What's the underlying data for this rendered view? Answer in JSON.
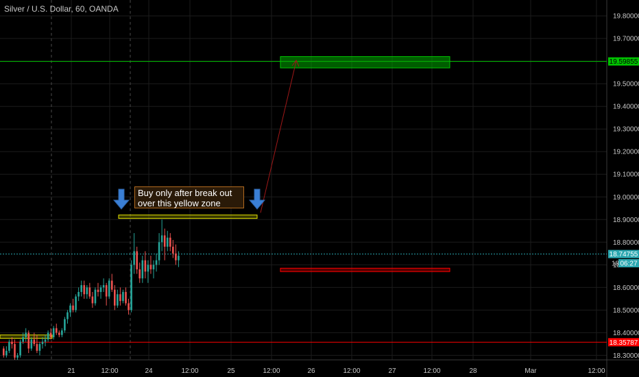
{
  "title": "Silver / U.S. Dollar, 60, OANDA",
  "note": {
    "line1": "Buy only after  break out",
    "line2": "over this yellow zone"
  },
  "colors": {
    "background": "#000000",
    "grid": "#1c1c1c",
    "axis_text": "#c8c8c8",
    "up": "#26a69a",
    "down": "#ef5350",
    "target": "#00c400",
    "stop": "#ff0000",
    "zone": "#e6e600",
    "arrow": "#3a7fd5",
    "price_line": "#2aa7b0"
  },
  "chart_data": {
    "type": "candlestick",
    "title": "Silver / U.S. Dollar, 60, OANDA",
    "ylim": [
      18.28,
      19.87
    ],
    "y_ticks": [
      "19.80000",
      "19.70000",
      "19.60000",
      "19.50000",
      "19.40000",
      "19.30000",
      "19.20000",
      "19.10000",
      "19.00000",
      "18.90000",
      "18.80000",
      "18.70000",
      "18.60000",
      "18.50000",
      "18.40000",
      "18.30000"
    ],
    "x_ticks": [
      "21",
      "12:00",
      "24",
      "12:00",
      "25",
      "12:00",
      "26",
      "12:00",
      "27",
      "12:00",
      "28",
      "Mar",
      "12:00"
    ],
    "price_labels": [
      {
        "text": "19.59855",
        "value": 19.59855,
        "color": "#00c400"
      },
      {
        "text": "18.74755",
        "value": 18.74755,
        "color": "#2aa7b0"
      },
      {
        "text": "06:27",
        "value": 18.7,
        "color": "#2aa7b0"
      },
      {
        "text": "18",
        "value": 18.7,
        "color": "#c8c8c8"
      },
      {
        "text": "18.35787",
        "value": 18.35787,
        "color": "#ff0000"
      }
    ],
    "horizontal_lines": [
      {
        "name": "target",
        "value": 19.59855
      },
      {
        "name": "stop",
        "value": 18.35787
      },
      {
        "name": "last",
        "value": 18.74755
      }
    ],
    "zones": [
      {
        "name": "target-zone",
        "top": 19.62,
        "bottom": 19.57
      },
      {
        "name": "breakout-zone",
        "top": 18.92,
        "bottom": 18.905
      },
      {
        "name": "stop-zone",
        "top": 18.685,
        "bottom": 18.67
      },
      {
        "name": "left-zone",
        "top": 18.39,
        "bottom": 18.375
      }
    ],
    "candles": [
      [
        18.33,
        18.34,
        18.29,
        18.3
      ],
      [
        18.3,
        18.34,
        18.29,
        18.32
      ],
      [
        18.32,
        18.37,
        18.31,
        18.36
      ],
      [
        18.36,
        18.38,
        18.33,
        18.35
      ],
      [
        18.35,
        18.37,
        18.28,
        18.29
      ],
      [
        18.29,
        18.31,
        18.28,
        18.3
      ],
      [
        18.3,
        18.37,
        18.29,
        18.36
      ],
      [
        18.36,
        18.4,
        18.35,
        18.38
      ],
      [
        18.38,
        18.42,
        18.36,
        18.4
      ],
      [
        18.4,
        18.41,
        18.31,
        18.33
      ],
      [
        18.33,
        18.38,
        18.32,
        18.37
      ],
      [
        18.37,
        18.4,
        18.34,
        18.35
      ],
      [
        18.35,
        18.39,
        18.31,
        18.32
      ],
      [
        18.32,
        18.36,
        18.3,
        18.35
      ],
      [
        18.35,
        18.38,
        18.33,
        18.36
      ],
      [
        18.36,
        18.39,
        18.34,
        18.37
      ],
      [
        18.37,
        18.41,
        18.36,
        18.4
      ],
      [
        18.4,
        18.42,
        18.37,
        18.38
      ],
      [
        18.38,
        18.43,
        18.37,
        18.42
      ],
      [
        18.42,
        18.44,
        18.39,
        18.4
      ],
      [
        18.4,
        18.41,
        18.38,
        18.39
      ],
      [
        18.39,
        18.42,
        18.38,
        18.41
      ],
      [
        18.41,
        18.47,
        18.4,
        18.46
      ],
      [
        18.46,
        18.5,
        18.44,
        18.49
      ],
      [
        18.49,
        18.53,
        18.47,
        18.52
      ],
      [
        18.52,
        18.55,
        18.49,
        18.5
      ],
      [
        18.5,
        18.57,
        18.49,
        18.56
      ],
      [
        18.56,
        18.6,
        18.54,
        18.58
      ],
      [
        18.58,
        18.63,
        18.56,
        18.61
      ],
      [
        18.61,
        18.63,
        18.55,
        18.57
      ],
      [
        18.57,
        18.61,
        18.55,
        18.6
      ],
      [
        18.6,
        18.62,
        18.55,
        18.56
      ],
      [
        18.56,
        18.58,
        18.51,
        18.53
      ],
      [
        18.53,
        18.6,
        18.52,
        18.59
      ],
      [
        18.59,
        18.62,
        18.56,
        18.58
      ],
      [
        18.58,
        18.61,
        18.55,
        18.6
      ],
      [
        18.6,
        18.64,
        18.58,
        18.61
      ],
      [
        18.61,
        18.62,
        18.52,
        18.56
      ],
      [
        18.56,
        18.64,
        18.55,
        18.63
      ],
      [
        18.63,
        18.66,
        18.58,
        18.59
      ],
      [
        18.59,
        18.61,
        18.5,
        18.52
      ],
      [
        18.52,
        18.59,
        18.51,
        18.57
      ],
      [
        18.57,
        18.6,
        18.52,
        18.54
      ],
      [
        18.54,
        18.59,
        18.53,
        18.58
      ],
      [
        18.58,
        18.6,
        18.52,
        18.53
      ],
      [
        18.53,
        18.55,
        18.48,
        18.5
      ],
      [
        18.5,
        18.72,
        18.49,
        18.7
      ],
      [
        18.7,
        18.84,
        18.66,
        18.76
      ],
      [
        18.76,
        18.78,
        18.66,
        18.68
      ],
      [
        18.68,
        18.71,
        18.62,
        18.64
      ],
      [
        18.64,
        18.74,
        18.62,
        18.72
      ],
      [
        18.72,
        18.76,
        18.64,
        18.67
      ],
      [
        18.67,
        18.72,
        18.62,
        18.7
      ],
      [
        18.7,
        18.74,
        18.66,
        18.68
      ],
      [
        18.68,
        18.72,
        18.64,
        18.7
      ],
      [
        18.7,
        18.75,
        18.67,
        18.72
      ],
      [
        18.72,
        18.84,
        18.7,
        18.8
      ],
      [
        18.8,
        18.9,
        18.76,
        18.83
      ],
      [
        18.83,
        18.86,
        18.72,
        18.78
      ],
      [
        18.78,
        18.85,
        18.76,
        18.82
      ],
      [
        18.82,
        18.84,
        18.76,
        18.78
      ],
      [
        18.78,
        18.81,
        18.73,
        18.75
      ],
      [
        18.75,
        18.79,
        18.7,
        18.72
      ],
      [
        18.72,
        18.76,
        18.69,
        18.74
      ]
    ]
  }
}
